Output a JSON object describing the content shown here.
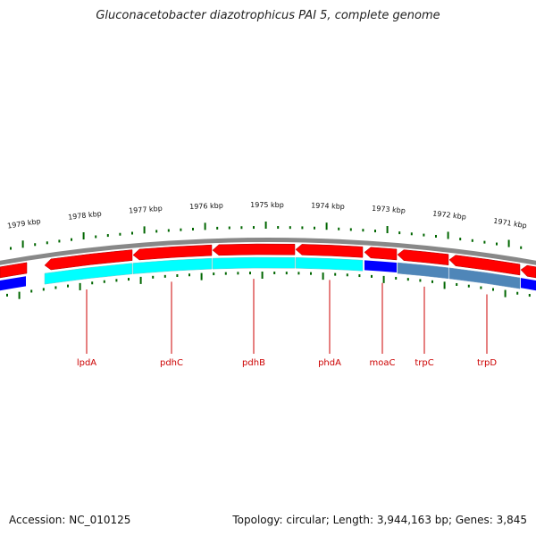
{
  "title": "Gluconacetobacter diazotrophicus PAI 5, complete genome",
  "footer": {
    "accession": "Accession: NC_010125",
    "topology": "Topology: circular; Length: 3,944,163 bp; Genes: 3,845"
  },
  "colors": {
    "forward_gene": "#ff0000",
    "reverse_gene": "#0000ff",
    "feature_cyan": "#00ffff",
    "feature_steelblue": "#4f86b8",
    "backbone": "#888888",
    "ticks": "#006600",
    "gene_labels": "#cc0000"
  },
  "scale": {
    "unit": "kbp",
    "labeled_kbp": [
      1979,
      1978,
      1977,
      1976,
      1975,
      1974,
      1973,
      1972,
      1971
    ]
  },
  "genes": [
    {
      "name": "lpdA",
      "strand": "forward"
    },
    {
      "name": "pdhC",
      "strand": "forward"
    },
    {
      "name": "pdhB",
      "strand": "forward"
    },
    {
      "name": "phdA",
      "strand": "forward"
    },
    {
      "name": "moaC",
      "strand": "forward"
    },
    {
      "name": "trpC",
      "strand": "forward"
    },
    {
      "name": "trpD",
      "strand": "forward"
    }
  ]
}
